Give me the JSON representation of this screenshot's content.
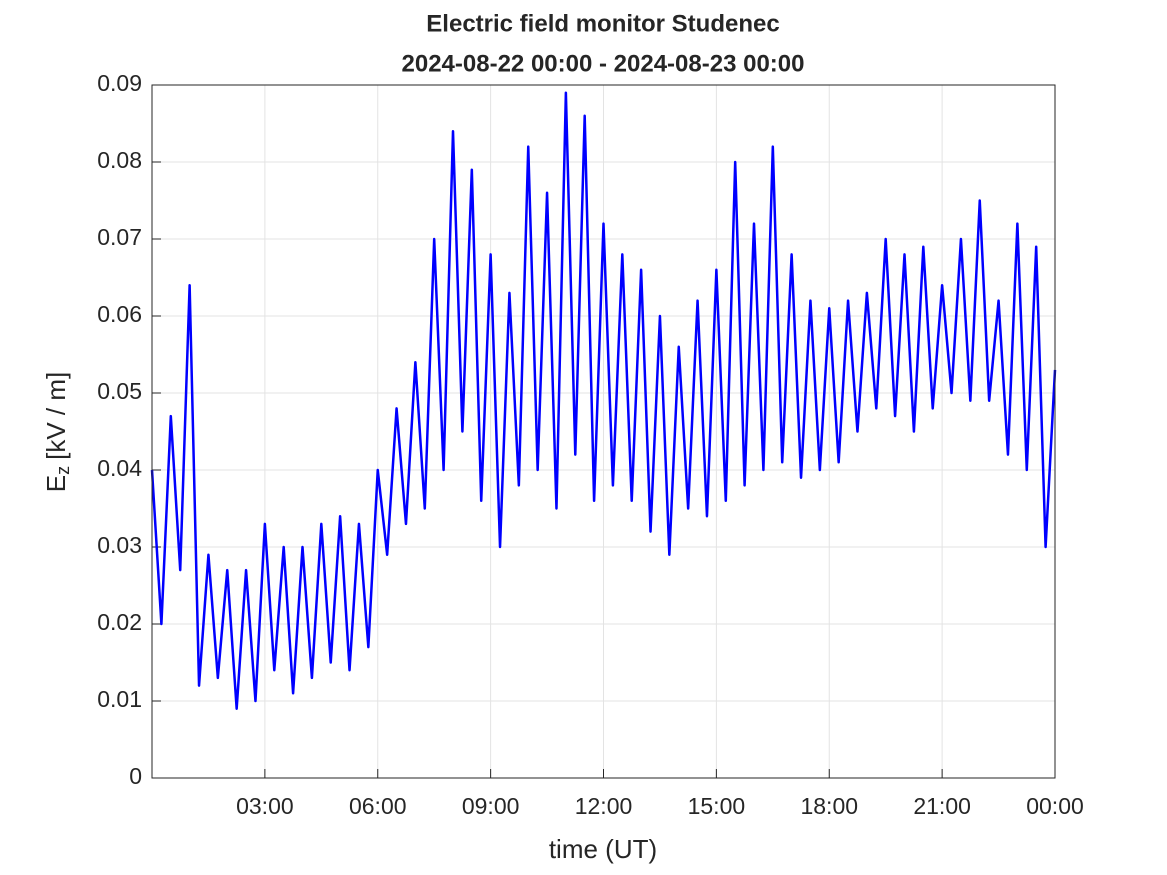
{
  "chart_data": {
    "type": "line",
    "title": [
      "Electric field monitor Studenec",
      "2024-08-22 00:00 - 2024-08-23 00:00"
    ],
    "xlabel": "time (UT)",
    "ylabel": {
      "symbol": "E",
      "subscript": "z",
      "unit": "[kV / m]"
    },
    "xlim": [
      0,
      24
    ],
    "ylim": [
      0,
      0.09
    ],
    "xticks": [
      {
        "value": 3,
        "label": "03:00"
      },
      {
        "value": 6,
        "label": "06:00"
      },
      {
        "value": 9,
        "label": "09:00"
      },
      {
        "value": 12,
        "label": "12:00"
      },
      {
        "value": 15,
        "label": "15:00"
      },
      {
        "value": 18,
        "label": "18:00"
      },
      {
        "value": 21,
        "label": "21:00"
      },
      {
        "value": 24,
        "label": "00:00"
      }
    ],
    "yticks": [
      0,
      0.01,
      0.02,
      0.03,
      0.04,
      0.05,
      0.06,
      0.07,
      0.08,
      0.09
    ],
    "grid": true,
    "x": [
      0,
      0.25,
      0.5,
      0.75,
      1,
      1.25,
      1.5,
      1.75,
      2,
      2.25,
      2.5,
      2.75,
      3,
      3.25,
      3.5,
      3.75,
      4,
      4.25,
      4.5,
      4.75,
      5,
      5.25,
      5.5,
      5.75,
      6,
      6.25,
      6.5,
      6.75,
      7,
      7.25,
      7.5,
      7.75,
      8,
      8.25,
      8.5,
      8.75,
      9,
      9.25,
      9.5,
      9.75,
      10,
      10.25,
      10.5,
      10.75,
      11,
      11.25,
      11.5,
      11.75,
      12,
      12.25,
      12.5,
      12.75,
      13,
      13.25,
      13.5,
      13.75,
      14,
      14.25,
      14.5,
      14.75,
      15,
      15.25,
      15.5,
      15.75,
      16,
      16.25,
      16.5,
      16.75,
      17,
      17.25,
      17.5,
      17.75,
      18,
      18.25,
      18.5,
      18.75,
      19,
      19.25,
      19.5,
      19.75,
      20,
      20.25,
      20.5,
      20.75,
      21,
      21.25,
      21.5,
      21.75,
      22,
      22.25,
      22.5,
      22.75,
      23,
      23.25,
      23.5,
      23.75,
      24
    ],
    "series": [
      {
        "color": "#0000ff",
        "values": [
          0.04,
          0.02,
          0.047,
          0.027,
          0.064,
          0.012,
          0.029,
          0.013,
          0.027,
          0.009,
          0.027,
          0.01,
          0.033,
          0.014,
          0.03,
          0.011,
          0.03,
          0.013,
          0.033,
          0.015,
          0.034,
          0.014,
          0.033,
          0.017,
          0.04,
          0.029,
          0.048,
          0.033,
          0.054,
          0.035,
          0.07,
          0.04,
          0.084,
          0.045,
          0.079,
          0.036,
          0.068,
          0.03,
          0.063,
          0.038,
          0.082,
          0.04,
          0.076,
          0.035,
          0.089,
          0.042,
          0.086,
          0.036,
          0.072,
          0.038,
          0.068,
          0.036,
          0.066,
          0.032,
          0.06,
          0.029,
          0.056,
          0.035,
          0.062,
          0.034,
          0.066,
          0.036,
          0.08,
          0.038,
          0.072,
          0.04,
          0.082,
          0.041,
          0.068,
          0.039,
          0.062,
          0.04,
          0.061,
          0.041,
          0.062,
          0.045,
          0.063,
          0.048,
          0.07,
          0.047,
          0.068,
          0.045,
          0.069,
          0.048,
          0.064,
          0.05,
          0.07,
          0.049,
          0.075,
          0.049,
          0.062,
          0.042,
          0.072,
          0.04,
          0.069,
          0.03,
          0.053
        ]
      }
    ]
  }
}
